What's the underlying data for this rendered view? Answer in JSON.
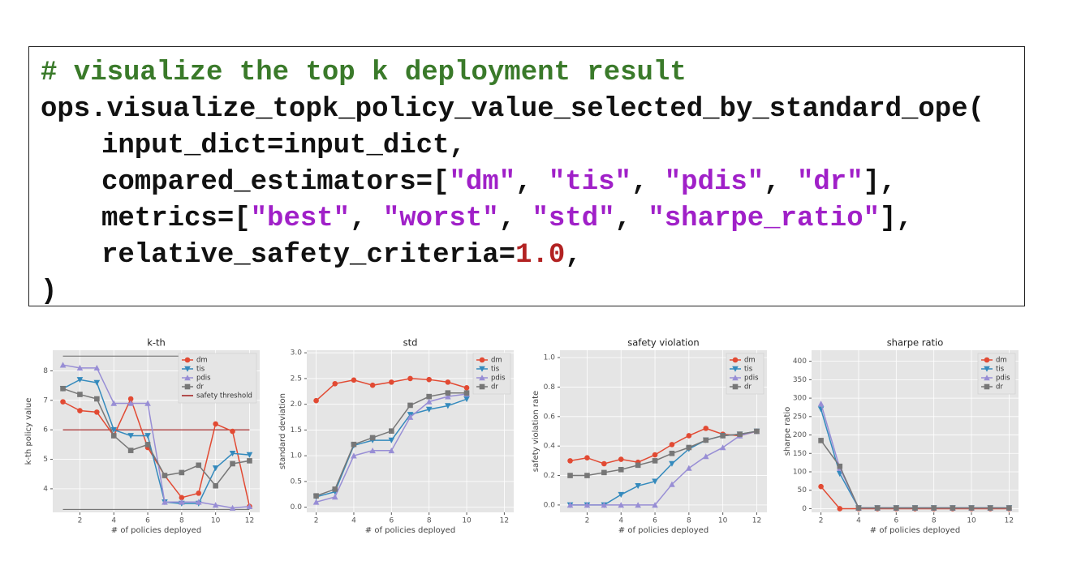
{
  "code": {
    "lines": [
      [
        "# visualize the top k deployment result"
      ],
      [
        "ops.visualize_topk_policy_value_selected_by_standard_ope("
      ],
      [
        "input_dict=input_dict,"
      ],
      [
        "compared_estimators=[",
        "\"dm\"",
        ", ",
        "\"tis\"",
        ", ",
        "\"pdis\"",
        ", ",
        "\"dr\"",
        "],"
      ],
      [
        "metrics=[",
        "\"best\"",
        ", ",
        "\"worst\"",
        ", ",
        "\"std\"",
        ", ",
        "\"sharpe_ratio\"",
        "],"
      ],
      [
        "relative_safety_criteria=",
        "1.0",
        ","
      ],
      [
        ")"
      ]
    ]
  },
  "chart_data": [
    {
      "type": "line",
      "title": "k-th",
      "xlabel": "# of policies deployed",
      "ylabel": "k-th policy value",
      "x": [
        1,
        2,
        3,
        4,
        5,
        6,
        7,
        8,
        9,
        10,
        11,
        12
      ],
      "xlim": [
        0.4,
        12.6
      ],
      "xticks": [
        2,
        4,
        6,
        8,
        10,
        12
      ],
      "ylim": [
        3.2,
        8.7
      ],
      "yticks": [
        4,
        5,
        6,
        7,
        8
      ],
      "grid": true,
      "legend": "upper right",
      "series": [
        {
          "name": "dm",
          "color": "#e24a33",
          "marker": "circle",
          "values": [
            6.95,
            6.65,
            6.6,
            5.8,
            7.05,
            5.4,
            4.45,
            3.7,
            3.85,
            6.2,
            5.95,
            3.4
          ]
        },
        {
          "name": "tis",
          "color": "#348abd",
          "marker": "triangle-down",
          "values": [
            7.4,
            7.7,
            7.6,
            6.0,
            5.8,
            5.8,
            3.55,
            3.5,
            3.5,
            4.7,
            5.2,
            5.15
          ]
        },
        {
          "name": "pdis",
          "color": "#988ed5",
          "marker": "triangle-up",
          "values": [
            8.2,
            8.1,
            8.1,
            6.9,
            6.9,
            6.9,
            3.55,
            3.55,
            3.55,
            3.45,
            3.35,
            3.4
          ]
        },
        {
          "name": "dr",
          "color": "#777777",
          "marker": "square",
          "values": [
            7.4,
            7.2,
            7.05,
            5.8,
            5.3,
            5.5,
            4.45,
            4.55,
            4.8,
            4.1,
            4.85,
            4.95
          ]
        }
      ],
      "threshold": {
        "name": "safety threshold",
        "value": 6.0,
        "color": "#a11a1a"
      },
      "reference_lines": {
        "color": "#666666",
        "values": [
          8.5,
          3.3
        ]
      }
    },
    {
      "type": "line",
      "title": "std",
      "xlabel": "# of policies deployed",
      "ylabel": "standard deviation",
      "x": [
        2,
        3,
        4,
        5,
        6,
        7,
        8,
        9,
        10
      ],
      "xlim": [
        1.5,
        12.5
      ],
      "xticks": [
        2,
        4,
        6,
        8,
        10,
        12
      ],
      "ylim": [
        -0.1,
        3.05
      ],
      "yticks": [
        {
          "value": 0,
          "label": "0.0"
        },
        {
          "value": 0.5,
          "label": "0.5"
        },
        {
          "value": 1,
          "label": "1.0"
        },
        {
          "value": 1.5,
          "label": "1.5"
        },
        {
          "value": 2,
          "label": "2.0"
        },
        {
          "value": 2.5,
          "label": "2.5"
        },
        {
          "value": 3,
          "label": "3.0"
        }
      ],
      "grid": true,
      "legend": "upper right",
      "series": [
        {
          "name": "dm",
          "color": "#e24a33",
          "marker": "circle",
          "values": [
            2.07,
            2.4,
            2.47,
            2.37,
            2.43,
            2.5,
            2.48,
            2.43,
            2.32
          ]
        },
        {
          "name": "tis",
          "color": "#348abd",
          "marker": "triangle-down",
          "values": [
            0.2,
            0.3,
            1.2,
            1.3,
            1.3,
            1.8,
            1.9,
            1.97,
            2.1
          ]
        },
        {
          "name": "pdis",
          "color": "#988ed5",
          "marker": "triangle-up",
          "values": [
            0.1,
            0.2,
            1.0,
            1.1,
            1.1,
            1.75,
            2.05,
            2.15,
            2.2
          ]
        },
        {
          "name": "dr",
          "color": "#777777",
          "marker": "square",
          "values": [
            0.22,
            0.35,
            1.22,
            1.35,
            1.48,
            1.98,
            2.15,
            2.22,
            2.22
          ]
        }
      ]
    },
    {
      "type": "line",
      "title": "safety violation",
      "xlabel": "# of policies deployed",
      "ylabel": "safety violation rate",
      "x": [
        1,
        2,
        3,
        4,
        5,
        6,
        7,
        8,
        9,
        10,
        11,
        12
      ],
      "xlim": [
        0.4,
        12.6
      ],
      "xticks": [
        2,
        4,
        6,
        8,
        10,
        12
      ],
      "ylim": [
        -0.05,
        1.05
      ],
      "yticks": [
        {
          "value": 0,
          "label": "0.0"
        },
        0.2,
        0.4,
        0.6,
        0.8,
        {
          "value": 1,
          "label": "1.0"
        }
      ],
      "grid": true,
      "legend": "upper right",
      "series": [
        {
          "name": "dm",
          "color": "#e24a33",
          "marker": "circle",
          "values": [
            0.3,
            0.32,
            0.28,
            0.31,
            0.29,
            0.34,
            0.41,
            0.47,
            0.52,
            0.48,
            0.47,
            0.5
          ]
        },
        {
          "name": "tis",
          "color": "#348abd",
          "marker": "triangle-down",
          "values": [
            0,
            0,
            0,
            0.07,
            0.13,
            0.16,
            0.28,
            0.38,
            0.44,
            0.47,
            0.48,
            0.5
          ]
        },
        {
          "name": "pdis",
          "color": "#988ed5",
          "marker": "triangle-up",
          "values": [
            0,
            0,
            0,
            0,
            0,
            0,
            0.14,
            0.25,
            0.33,
            0.39,
            0.47,
            0.5
          ]
        },
        {
          "name": "dr",
          "color": "#777777",
          "marker": "square",
          "values": [
            0.2,
            0.2,
            0.22,
            0.24,
            0.27,
            0.3,
            0.35,
            0.39,
            0.44,
            0.47,
            0.48,
            0.5
          ]
        }
      ]
    },
    {
      "type": "line",
      "title": "sharpe ratio",
      "xlabel": "# of policies deployed",
      "ylabel": "sharpe ratio",
      "x": [
        2,
        3,
        4,
        5,
        6,
        7,
        8,
        9,
        10,
        11,
        12
      ],
      "xlim": [
        1.5,
        12.5
      ],
      "xticks": [
        2,
        4,
        6,
        8,
        10,
        12
      ],
      "ylim": [
        -10,
        430
      ],
      "yticks": [
        0,
        50,
        100,
        150,
        200,
        250,
        300,
        350,
        400
      ],
      "grid": true,
      "legend": "upper right",
      "series": [
        {
          "name": "dm",
          "color": "#e24a33",
          "marker": "circle",
          "values": [
            60,
            0,
            0,
            0,
            0,
            0,
            0,
            0,
            0,
            0,
            0
          ]
        },
        {
          "name": "tis",
          "color": "#348abd",
          "marker": "triangle-down",
          "values": [
            270,
            95,
            2,
            2,
            2,
            2,
            2,
            2,
            2,
            2,
            2
          ]
        },
        {
          "name": "pdis",
          "color": "#988ed5",
          "marker": "triangle-up",
          "values": [
            285,
            110,
            2,
            2,
            2,
            2,
            2,
            2,
            2,
            2,
            2
          ]
        },
        {
          "name": "dr",
          "color": "#777777",
          "marker": "square",
          "values": [
            185,
            115,
            2,
            2,
            2,
            2,
            2,
            2,
            2,
            2,
            2
          ]
        }
      ]
    }
  ]
}
